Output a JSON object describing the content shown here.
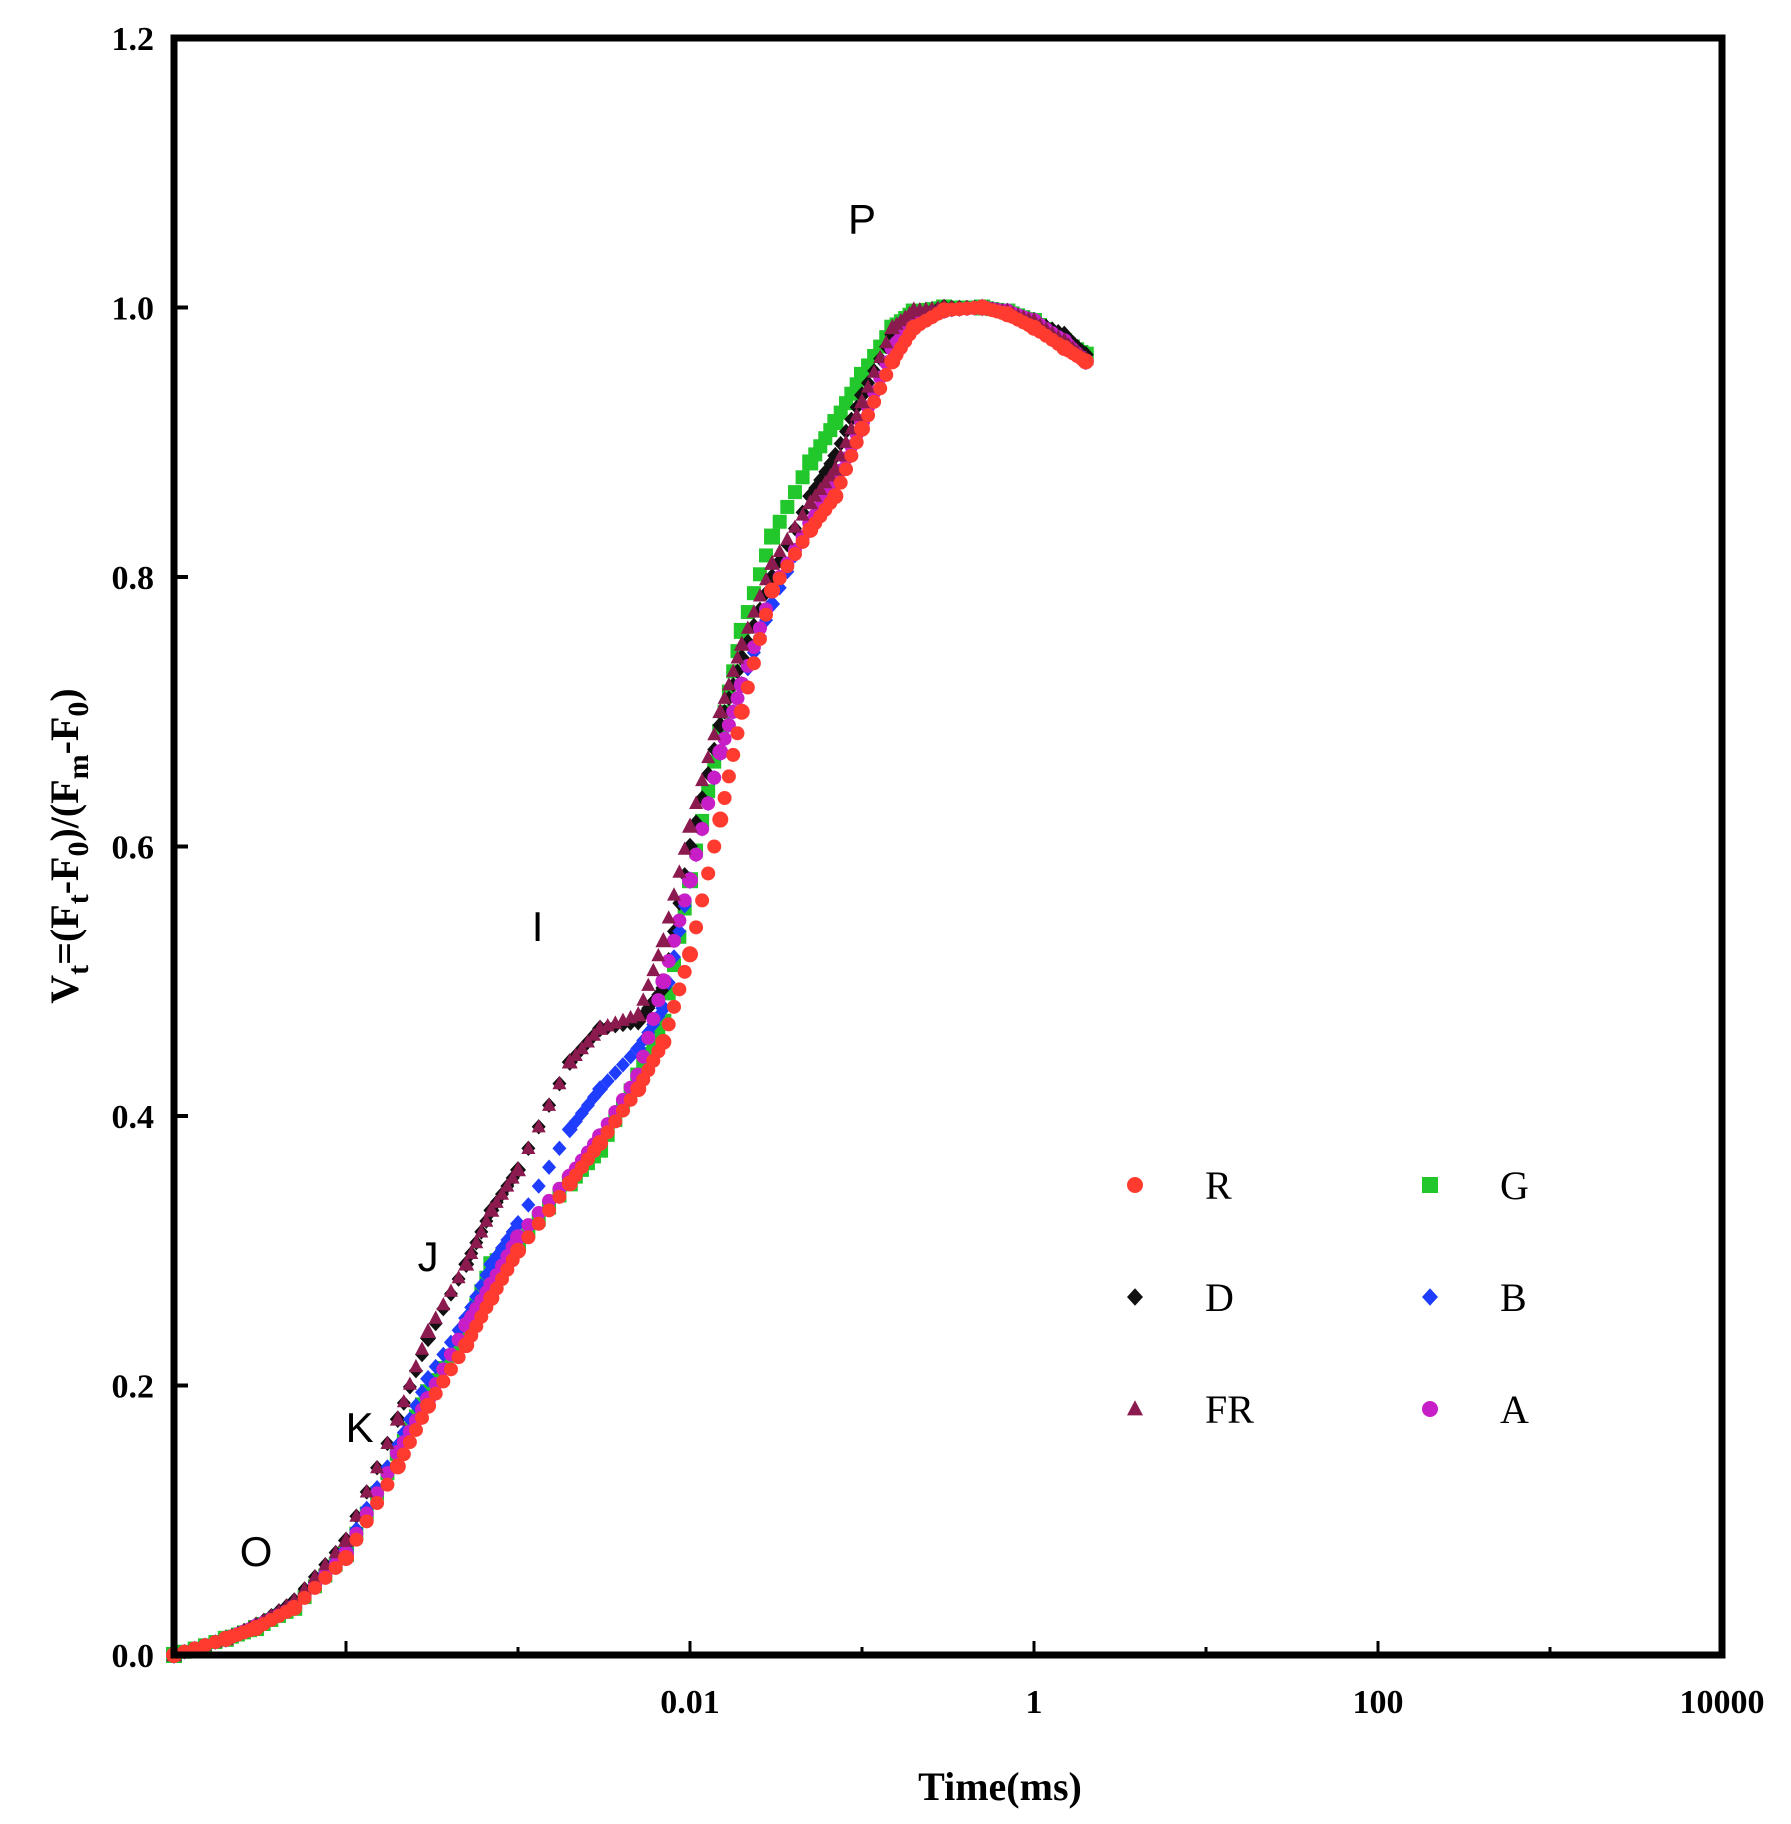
{
  "chart_data": {
    "type": "scatter",
    "title": "",
    "xlabel": "Time(ms)",
    "ylabel": "Vt=(Ft-F0)/(Fm-F0)",
    "ylabel_parts": {
      "V": "V",
      "t1": "t",
      "eq": "=(F",
      "t2": "t",
      "mid": "-F",
      "z1": "0",
      "close": ")/(F",
      "m": "m",
      "mid2": "-F",
      "z2": "0",
      "end": ")"
    },
    "x_scale": "log",
    "xlim": [
      1e-05,
      10000
    ],
    "ylim": [
      0.0,
      1.2
    ],
    "x_ticks": [
      0.01,
      1,
      100,
      10000
    ],
    "x_tick_labels": [
      "0.01",
      "1",
      "100",
      "10000"
    ],
    "y_ticks": [
      0.0,
      0.2,
      0.4,
      0.6,
      0.8,
      1.0,
      1.2
    ],
    "y_tick_labels": [
      "0.0",
      "0.2",
      "0.4",
      "0.6",
      "0.8",
      "1.0",
      "1.2"
    ],
    "annotations": [
      {
        "text": "O",
        "x": 3e-05,
        "y": 0.066
      },
      {
        "text": "K",
        "x": 0.00012,
        "y": 0.158
      },
      {
        "text": "J",
        "x": 0.0003,
        "y": 0.285
      },
      {
        "text": "I",
        "x": 0.0013,
        "y": 0.53
      },
      {
        "text": "P",
        "x": 0.1,
        "y": 1.055
      }
    ],
    "legend": {
      "placement": "lower-right",
      "columns": 2
    },
    "series": [
      {
        "name": "R",
        "color": "#ff3b30",
        "marker": "circle",
        "x": [
          1e-05,
          2e-05,
          3e-05,
          5e-05,
          0.0001,
          0.0002,
          0.0003,
          0.0005,
          0.0007,
          0.001,
          0.002,
          0.003,
          0.005,
          0.007,
          0.01,
          0.015,
          0.02,
          0.03,
          0.05,
          0.07,
          0.1,
          0.15,
          0.2,
          0.3,
          0.5,
          0.7,
          1,
          1.5,
          2
        ],
        "y": [
          0.0,
          0.012,
          0.02,
          0.035,
          0.072,
          0.14,
          0.185,
          0.23,
          0.265,
          0.3,
          0.35,
          0.38,
          0.42,
          0.455,
          0.52,
          0.62,
          0.7,
          0.79,
          0.835,
          0.86,
          0.91,
          0.96,
          0.985,
          0.998,
          1.0,
          0.995,
          0.985,
          0.97,
          0.96
        ]
      },
      {
        "name": "G",
        "color": "#22c72b",
        "marker": "square",
        "x": [
          1e-05,
          2e-05,
          3e-05,
          5e-05,
          0.0001,
          0.0002,
          0.0003,
          0.0005,
          0.0007,
          0.001,
          0.002,
          0.003,
          0.005,
          0.007,
          0.01,
          0.015,
          0.02,
          0.03,
          0.05,
          0.07,
          0.1,
          0.15,
          0.2,
          0.3,
          0.5,
          0.7,
          1,
          1.5,
          2
        ],
        "y": [
          0.0,
          0.012,
          0.02,
          0.035,
          0.075,
          0.15,
          0.195,
          0.24,
          0.29,
          0.305,
          0.35,
          0.375,
          0.43,
          0.47,
          0.575,
          0.685,
          0.76,
          0.83,
          0.885,
          0.915,
          0.95,
          0.985,
          0.997,
          1.0,
          1.0,
          0.997,
          0.99,
          0.975,
          0.965
        ]
      },
      {
        "name": "D",
        "color": "#111111",
        "marker": "diamond",
        "x": [
          1e-05,
          2e-05,
          3e-05,
          5e-05,
          0.0001,
          0.0002,
          0.0003,
          0.0005,
          0.0007,
          0.001,
          0.002,
          0.003,
          0.005,
          0.007,
          0.01,
          0.015,
          0.02,
          0.03,
          0.05,
          0.07,
          0.1,
          0.15,
          0.2,
          0.3,
          0.5,
          0.7,
          1,
          1.5,
          2
        ],
        "y": [
          0.0,
          0.012,
          0.022,
          0.04,
          0.085,
          0.175,
          0.235,
          0.29,
          0.33,
          0.36,
          0.44,
          0.465,
          0.47,
          0.495,
          0.6,
          0.69,
          0.74,
          0.8,
          0.86,
          0.89,
          0.935,
          0.98,
          0.995,
          1.0,
          1.0,
          0.997,
          0.99,
          0.98,
          0.965
        ]
      },
      {
        "name": "B",
        "color": "#1f3dff",
        "marker": "diamond",
        "x": [
          1e-05,
          2e-05,
          3e-05,
          5e-05,
          0.0001,
          0.0002,
          0.0003,
          0.0005,
          0.0007,
          0.001,
          0.002,
          0.003,
          0.005,
          0.007,
          0.01,
          0.015,
          0.02,
          0.03,
          0.05,
          0.07,
          0.1,
          0.15,
          0.2,
          0.3,
          0.5,
          0.7,
          1,
          1.5,
          2
        ],
        "y": [
          0.0,
          0.012,
          0.021,
          0.037,
          0.078,
          0.155,
          0.205,
          0.25,
          0.29,
          0.32,
          0.39,
          0.42,
          0.45,
          0.48,
          0.575,
          0.67,
          0.72,
          0.78,
          0.84,
          0.87,
          0.915,
          0.97,
          0.99,
          0.998,
          1.0,
          0.997,
          0.99,
          0.975,
          0.96
        ]
      },
      {
        "name": "FR",
        "color": "#8b1a4f",
        "marker": "triangle",
        "x": [
          1e-05,
          2e-05,
          3e-05,
          5e-05,
          0.0001,
          0.0002,
          0.0003,
          0.0005,
          0.0007,
          0.001,
          0.002,
          0.003,
          0.005,
          0.007,
          0.01,
          0.015,
          0.02,
          0.03,
          0.05,
          0.07,
          0.1,
          0.15,
          0.2,
          0.3,
          0.5,
          0.7,
          1,
          1.5,
          2
        ],
        "y": [
          0.0,
          0.012,
          0.022,
          0.04,
          0.085,
          0.175,
          0.24,
          0.29,
          0.33,
          0.36,
          0.44,
          0.465,
          0.475,
          0.53,
          0.615,
          0.7,
          0.75,
          0.81,
          0.855,
          0.88,
          0.93,
          0.985,
          0.998,
          1.0,
          1.0,
          0.997,
          0.99,
          0.975,
          0.962
        ]
      },
      {
        "name": "A",
        "color": "#c81ec8",
        "marker": "circle",
        "x": [
          1e-05,
          2e-05,
          3e-05,
          5e-05,
          0.0001,
          0.0002,
          0.0003,
          0.0005,
          0.0007,
          0.001,
          0.002,
          0.003,
          0.005,
          0.007,
          0.01,
          0.015,
          0.02,
          0.03,
          0.05,
          0.07,
          0.1,
          0.15,
          0.2,
          0.3,
          0.5,
          0.7,
          1,
          1.5,
          2
        ],
        "y": [
          0.0,
          0.012,
          0.021,
          0.036,
          0.075,
          0.15,
          0.19,
          0.245,
          0.275,
          0.31,
          0.355,
          0.385,
          0.43,
          0.5,
          0.575,
          0.67,
          0.72,
          0.79,
          0.84,
          0.87,
          0.915,
          0.97,
          0.99,
          0.998,
          1.0,
          0.997,
          0.99,
          0.975,
          0.96
        ]
      }
    ]
  }
}
